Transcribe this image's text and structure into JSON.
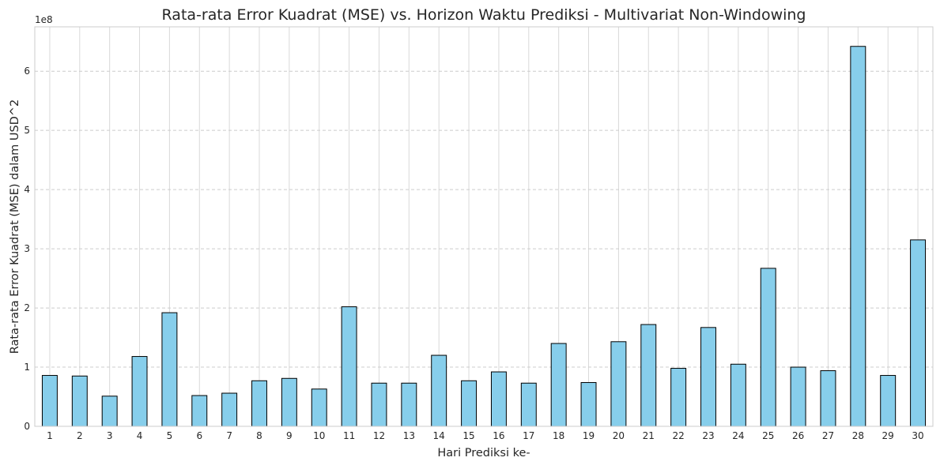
{
  "chart_data": {
    "type": "bar",
    "title": "Rata-rata Error Kuadrat (MSE) vs. Horizon Waktu Prediksi - Multivariat Non-Windowing",
    "xlabel": "Hari Prediksi ke-",
    "ylabel": "Rata-rata Error Kuadrat (MSE) dalam USD^2",
    "y_offset_label": "1e8",
    "y_multiplier": 100000000,
    "ylim": [
      0,
      675000000
    ],
    "yticks": [
      0,
      100000000,
      200000000,
      300000000,
      400000000,
      500000000,
      600000000
    ],
    "ytick_labels": [
      "0",
      "1",
      "2",
      "3",
      "4",
      "5",
      "6"
    ],
    "grid": "on",
    "bar_color": "#87ceeb",
    "edge_color": "#000000",
    "categories": [
      "1",
      "2",
      "3",
      "4",
      "5",
      "6",
      "7",
      "8",
      "9",
      "10",
      "11",
      "12",
      "13",
      "14",
      "15",
      "16",
      "17",
      "18",
      "19",
      "20",
      "21",
      "22",
      "23",
      "24",
      "25",
      "26",
      "27",
      "28",
      "29",
      "30"
    ],
    "values": [
      86000000,
      85000000,
      51000000,
      118000000,
      192000000,
      52000000,
      56000000,
      77000000,
      81000000,
      63000000,
      202000000,
      73000000,
      73000000,
      120000000,
      77000000,
      92000000,
      73000000,
      140000000,
      74000000,
      143000000,
      172000000,
      98000000,
      167000000,
      105000000,
      267000000,
      100000000,
      94000000,
      642000000,
      86000000,
      315000000
    ]
  }
}
